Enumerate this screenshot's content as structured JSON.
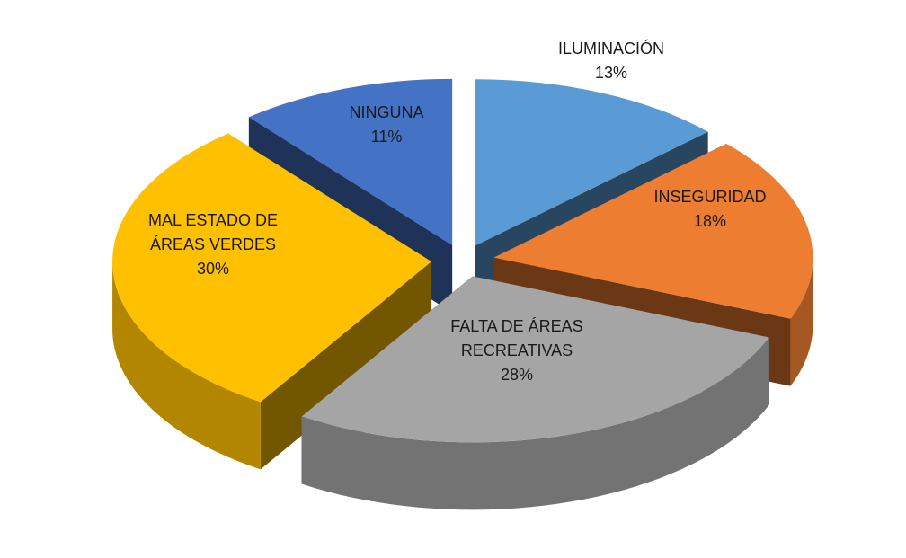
{
  "chart_data": {
    "type": "pie3d",
    "categories": [
      "ILUMINACIÓN",
      "INSEGURIDAD",
      "FALTA DE ÁREAS RECREATIVAS",
      "MAL ESTADO DE ÁREAS VERDES",
      "NINGUNA"
    ],
    "values": [
      13,
      18,
      28,
      30,
      11
    ],
    "value_labels": [
      "13%",
      "18%",
      "28%",
      "30%",
      "11%"
    ],
    "colors": [
      "#5b9bd5",
      "#ed7d31",
      "#a5a5a5",
      "#ffc000",
      "#4472c4"
    ]
  }
}
